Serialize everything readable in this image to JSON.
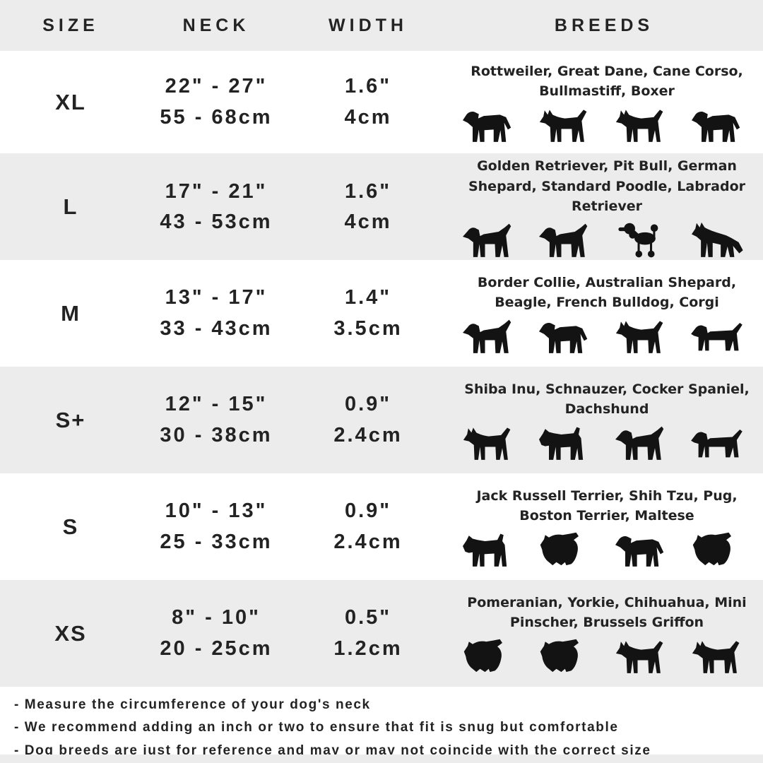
{
  "colors": {
    "row_alt_bg": "#ececec",
    "text": "#232323",
    "dog_icon": "#131313",
    "background": "#ffffff"
  },
  "chart_data": {
    "type": "table",
    "columns": [
      "SIZE",
      "NECK",
      "WIDTH",
      "BREEDS"
    ],
    "rows": [
      {
        "size": "XL",
        "neck_in": "22\" - 27\"",
        "neck_cm": "55 - 68cm",
        "width_in": "1.6\"",
        "width_cm": "4cm",
        "breeds": "Rottweiler, Great Dane, Cane Corso, Bullmastiff, Boxer",
        "dog_icons": [
          "rottweiler-icon",
          "great-dane-icon",
          "doberman-icon",
          "bullmastiff-icon"
        ]
      },
      {
        "size": "L",
        "neck_in": "17\" - 21\"",
        "neck_cm": "43 - 53cm",
        "width_in": "1.6\"",
        "width_cm": "4cm",
        "breeds": "Golden Retriever, Pit Bull, German Shepard, Standard Poodle, Labrador Retriever",
        "dog_icons": [
          "golden-retriever-icon",
          "labrador-icon",
          "poodle-icon",
          "german-shepherd-icon"
        ]
      },
      {
        "size": "M",
        "neck_in": "13\" - 17\"",
        "neck_cm": "33 - 43cm",
        "width_in": "1.4\"",
        "width_cm": "3.5cm",
        "breeds": "Border Collie, Australian Shepard, Beagle, French Bulldog, Corgi",
        "dog_icons": [
          "australian-shepherd-icon",
          "beagle-icon",
          "french-bulldog-icon",
          "corgi-icon"
        ]
      },
      {
        "size": "S+",
        "neck_in": "12\" - 15\"",
        "neck_cm": "30 - 38cm",
        "width_in": "0.9\"",
        "width_cm": "2.4cm",
        "breeds": "Shiba Inu, Schnauzer, Cocker Spaniel, Dachshund",
        "dog_icons": [
          "shiba-inu-icon",
          "schnauzer-icon",
          "cocker-spaniel-icon",
          "dachshund-icon"
        ]
      },
      {
        "size": "S",
        "neck_in": "10\" - 13\"",
        "neck_cm": "25 - 33cm",
        "width_in": "0.9\"",
        "width_cm": "2.4cm",
        "breeds": "Jack Russell Terrier, Shih Tzu, Pug, Boston Terrier, Maltese",
        "dog_icons": [
          "jack-russell-icon",
          "shih-tzu-icon",
          "pug-icon",
          "maltese-icon"
        ]
      },
      {
        "size": "XS",
        "neck_in": "8\" - 10\"",
        "neck_cm": "20 - 25cm",
        "width_in": "0.5\"",
        "width_cm": "1.2cm",
        "breeds": "Pomeranian, Yorkie, Chihuahua, Mini Pinscher, Brussels Griffon",
        "dog_icons": [
          "pomeranian-icon",
          "yorkie-icon",
          "chihuahua-icon",
          "min-pin-icon"
        ]
      }
    ]
  },
  "notes": [
    "- Measure the circumference of your dog's neck",
    "- We recommend adding an inch or two to ensure that fit is snug but comfortable",
    "- Dog breeds are just for reference and may or may not coincide with the correct size"
  ]
}
